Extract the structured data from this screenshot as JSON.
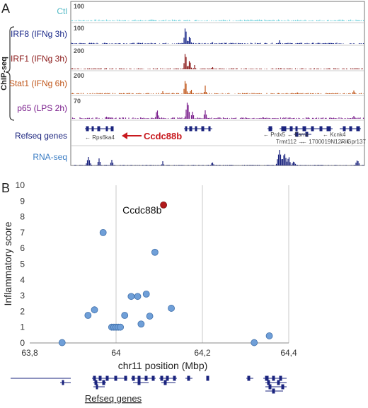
{
  "panel_a": {
    "letter": "A",
    "group_label": "ChIP-seq",
    "tracks": [
      {
        "label": "Ctl",
        "scale": "100",
        "color": "#7fd6e0"
      },
      {
        "label": "IRF8 (IFNg 3h)",
        "scale": "100",
        "color": "#1c2a8a"
      },
      {
        "label": "IRF1 (IFNg 3h)",
        "scale": "200",
        "color": "#8b1a1a"
      },
      {
        "label": "Stat1 (IFNg 6h)",
        "scale": "200",
        "color": "#c0561a"
      },
      {
        "label": "p65 (LPS 2h)",
        "scale": "70",
        "color": "#7a1e8c"
      }
    ],
    "refseq_label": "Refseq genes",
    "rnaseq_label": "RNA-seq",
    "gene_labels": {
      "rps6ka4": "← Rps6ka4",
      "ccdc88b": "Ccdc88b",
      "prdx5": "← Prdx5",
      "esrra": "← Esrra",
      "kcnk4": "← Kcnk4",
      "trmt112": "Trmt112 →",
      "riken": "← 1700019N12Rik",
      "gpr137": "← Gpr137"
    },
    "arrow_color": "#c8191e",
    "gene_color": "#1a237e"
  },
  "panel_b": {
    "letter": "B",
    "highlight_label": "Ccdc88b",
    "refseq_label": "Refseq genes"
  },
  "chart_data": {
    "type": "scatter",
    "title": "",
    "xlabel": "chr11 position (Mbp)",
    "ylabel": "Inflammatory score",
    "xlim": [
      63.8,
      64.4
    ],
    "ylim": [
      0,
      10
    ],
    "xticks": [
      63.8,
      64.0,
      64.2,
      64.4
    ],
    "xtick_labels": [
      "63,8",
      "64",
      "64,2",
      "64,4"
    ],
    "yticks": [
      0,
      1,
      2,
      3,
      4,
      5,
      6,
      7,
      8,
      9,
      10
    ],
    "ytick_labels": [
      "0",
      "1",
      "2",
      "3",
      "4",
      "5",
      "6",
      "7",
      "8",
      "9",
      "10"
    ],
    "grid": "vertical",
    "point_color": "#6f9fd8",
    "highlight_color": "#b2191b",
    "points": [
      {
        "x": 63.875,
        "y": 0.02
      },
      {
        "x": 63.935,
        "y": 1.75
      },
      {
        "x": 63.95,
        "y": 2.1
      },
      {
        "x": 63.97,
        "y": 7.0
      },
      {
        "x": 63.99,
        "y": 1.0
      },
      {
        "x": 63.995,
        "y": 1.0
      },
      {
        "x": 64.0,
        "y": 1.0
      },
      {
        "x": 64.005,
        "y": 1.0
      },
      {
        "x": 64.01,
        "y": 1.0
      },
      {
        "x": 64.02,
        "y": 1.75
      },
      {
        "x": 64.035,
        "y": 2.95
      },
      {
        "x": 64.05,
        "y": 2.95
      },
      {
        "x": 64.058,
        "y": 1.2
      },
      {
        "x": 64.07,
        "y": 3.1
      },
      {
        "x": 64.078,
        "y": 1.7
      },
      {
        "x": 64.09,
        "y": 5.75
      },
      {
        "x": 64.128,
        "y": 2.2
      },
      {
        "x": 64.32,
        "y": 0.02
      },
      {
        "x": 64.355,
        "y": 0.45
      }
    ],
    "highlight_point": {
      "x": 64.11,
      "y": 8.75,
      "label": "Ccdc88b"
    }
  }
}
